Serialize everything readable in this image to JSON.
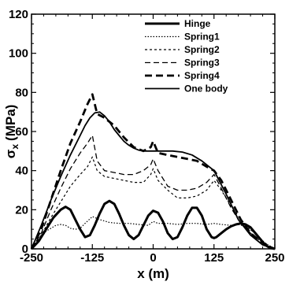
{
  "chart_data": {
    "type": "line",
    "title": "",
    "xlabel": "x (m)",
    "ylabel_main": "σ",
    "ylabel_sub": "x",
    "ylabel_unit": "(MPa)",
    "xlim": [
      -250,
      250
    ],
    "ylim": [
      0,
      120
    ],
    "xticks": [
      -250,
      -125,
      0,
      125,
      250
    ],
    "xtick_labels": [
      "-250",
      "-125",
      "0",
      "125",
      "250"
    ],
    "yticks": [
      0,
      20,
      40,
      60,
      80,
      100,
      120
    ],
    "ytick_labels": [
      "0",
      "20",
      "40",
      "60",
      "80",
      "100",
      "120"
    ],
    "grid": false,
    "legend_position": "top-right",
    "series": [
      {
        "name": "Hinge",
        "style": "solid-thick",
        "color": "#000000",
        "x": [
          -250,
          -235,
          -220,
          -205,
          -190,
          -180,
          -170,
          -160,
          -150,
          -140,
          -130,
          -120,
          -110,
          -100,
          -90,
          -80,
          -70,
          -60,
          -50,
          -40,
          -30,
          -20,
          -10,
          0,
          10,
          20,
          30,
          40,
          50,
          60,
          70,
          80,
          90,
          100,
          110,
          120,
          125,
          130,
          140,
          150,
          160,
          170,
          180,
          190,
          200,
          210,
          220,
          230,
          240,
          250
        ],
        "y": [
          0,
          4,
          10,
          16,
          20,
          21.5,
          20,
          15,
          10,
          6,
          7,
          12,
          18,
          23,
          24.5,
          23,
          18,
          12,
          7,
          5,
          7,
          12,
          17,
          19.5,
          18.5,
          14,
          8,
          5,
          6,
          11,
          17,
          21,
          21,
          17,
          10,
          6,
          5.5,
          6,
          8,
          10,
          11.5,
          12.5,
          13,
          12.5,
          11,
          8,
          5,
          2,
          0.5,
          0
        ]
      },
      {
        "name": "Spring1",
        "style": "dotted",
        "color": "#000000",
        "x": [
          -250,
          -235,
          -220,
          -200,
          -190,
          -180,
          -170,
          -160,
          -150,
          -140,
          -125,
          -110,
          -90,
          -70,
          -50,
          -30,
          -10,
          0,
          10,
          30,
          50,
          70,
          90,
          110,
          125,
          140,
          160,
          175,
          190,
          210,
          230,
          250
        ],
        "y": [
          0,
          4,
          9,
          12,
          12.5,
          12,
          10.5,
          10,
          10.5,
          13,
          16.5,
          15,
          13.5,
          13,
          13,
          12.5,
          12,
          14,
          13,
          13,
          12.5,
          13,
          13,
          12.5,
          13,
          12.5,
          12,
          12.5,
          11.5,
          8,
          3,
          0
        ]
      },
      {
        "name": "Spring2",
        "style": "short-dash",
        "color": "#000000",
        "x": [
          -250,
          -230,
          -210,
          -190,
          -170,
          -150,
          -135,
          -125,
          -115,
          -100,
          -80,
          -60,
          -40,
          -20,
          -5,
          0,
          10,
          30,
          50,
          70,
          90,
          110,
          125,
          140,
          160,
          180,
          200,
          220,
          240,
          250
        ],
        "y": [
          0,
          7,
          16,
          24,
          32,
          38,
          42,
          47,
          40,
          37,
          36,
          35,
          34,
          34,
          38,
          41,
          35,
          30,
          26,
          26,
          27,
          30,
          35,
          30,
          22,
          15,
          10,
          5,
          1,
          0
        ]
      },
      {
        "name": "Spring3",
        "style": "medium-dash",
        "color": "#000000",
        "x": [
          -250,
          -230,
          -210,
          -190,
          -170,
          -150,
          -135,
          -125,
          -115,
          -100,
          -80,
          -60,
          -40,
          -20,
          -5,
          0,
          10,
          30,
          50,
          70,
          90,
          110,
          125,
          140,
          160,
          180,
          200,
          220,
          240,
          250
        ],
        "y": [
          0,
          8,
          20,
          31,
          41,
          49,
          54,
          58,
          45,
          40,
          39,
          38,
          38,
          40,
          43,
          46,
          40,
          32,
          30,
          30,
          31,
          34,
          38,
          31,
          21,
          13,
          8,
          4,
          1,
          0
        ]
      },
      {
        "name": "Spring4",
        "style": "long-dash-thick",
        "color": "#000000",
        "x": [
          -250,
          -230,
          -210,
          -190,
          -170,
          -150,
          -135,
          -125,
          -115,
          -100,
          -80,
          -60,
          -40,
          -20,
          -5,
          0,
          10,
          30,
          50,
          70,
          90,
          110,
          125,
          140,
          160,
          180,
          200,
          220,
          240,
          250
        ],
        "y": [
          0,
          10,
          25,
          40,
          54,
          65,
          74,
          79,
          69,
          67,
          63,
          57,
          52,
          50,
          52,
          55,
          49,
          48,
          47,
          46,
          45,
          42,
          40,
          35,
          25,
          15,
          8,
          4,
          1,
          0
        ]
      },
      {
        "name": "One body",
        "style": "solid-thin",
        "color": "#000000",
        "x": [
          -250,
          -230,
          -210,
          -190,
          -170,
          -150,
          -140,
          -130,
          -120,
          -110,
          -100,
          -90,
          -80,
          -70,
          -60,
          -50,
          -40,
          -30,
          -20,
          -10,
          0,
          20,
          40,
          60,
          80,
          100,
          125,
          150,
          175,
          200,
          225,
          250
        ],
        "y": [
          0,
          12,
          25,
          37,
          48,
          58,
          63,
          67,
          69.5,
          70,
          68,
          65,
          61,
          58,
          55,
          53,
          51.5,
          50.5,
          50,
          50,
          50,
          50,
          50,
          49.5,
          48,
          45,
          40,
          28,
          15,
          7,
          2,
          0
        ]
      }
    ]
  }
}
